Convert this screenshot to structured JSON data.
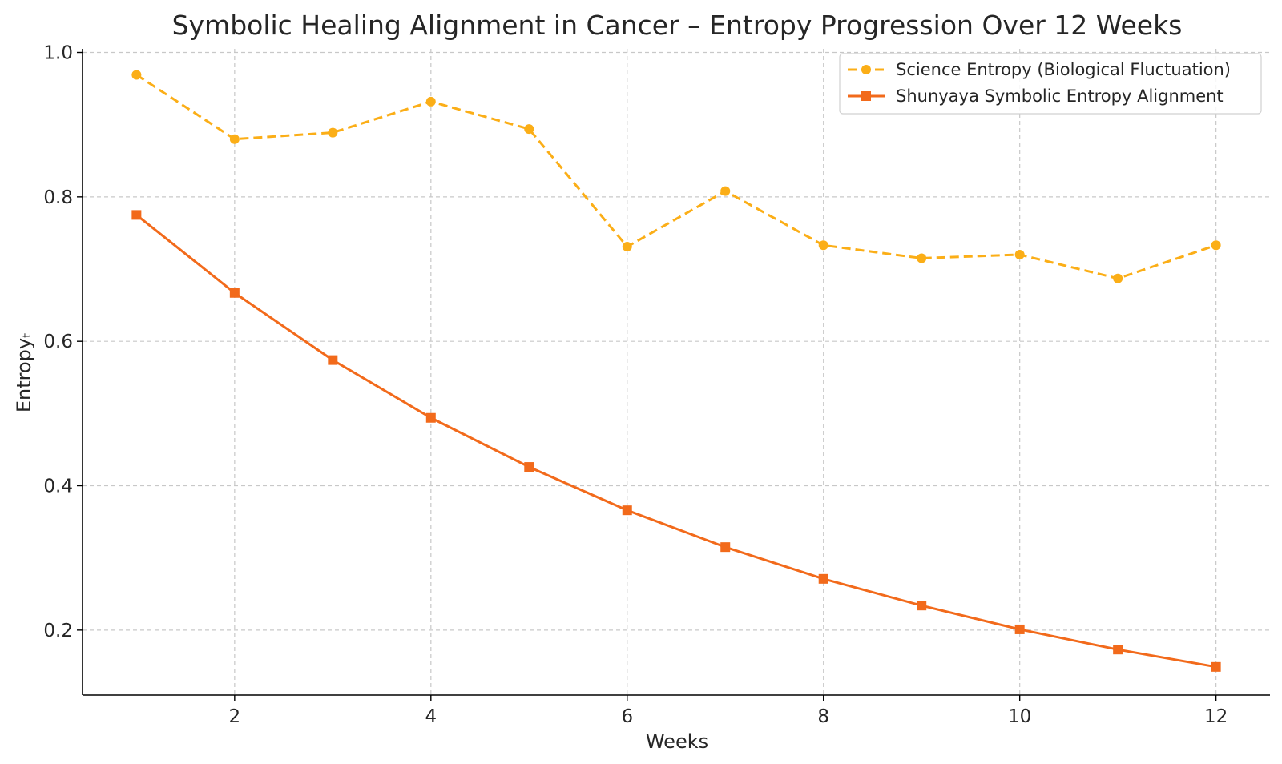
{
  "chart_data": {
    "type": "line",
    "title": "Symbolic Healing Alignment in Cancer – Entropy Progression Over 12 Weeks",
    "xlabel": "Weeks",
    "ylabel": "Entropyₜ",
    "x": [
      1,
      2,
      3,
      4,
      5,
      6,
      7,
      8,
      9,
      10,
      11,
      12
    ],
    "xlim": [
      0.45,
      12.55
    ],
    "ylim": [
      0.11,
      1.005
    ],
    "xticks": [
      2,
      4,
      6,
      8,
      10,
      12
    ],
    "yticks": [
      0.2,
      0.4,
      0.6,
      0.8,
      1.0
    ],
    "xtick_labels": [
      "2",
      "4",
      "6",
      "8",
      "10",
      "12"
    ],
    "ytick_labels": [
      "0.2",
      "0.4",
      "0.6",
      "0.8",
      "1.0"
    ],
    "grid": true,
    "legend_position": "top-right",
    "series": [
      {
        "name": "Science Entropy (Biological Fluctuation)",
        "color": "#FBAE17",
        "line_style": "dashed",
        "marker": "circle",
        "values": [
          0.969,
          0.88,
          0.889,
          0.932,
          0.894,
          0.731,
          0.808,
          0.733,
          0.715,
          0.72,
          0.687,
          0.733
        ]
      },
      {
        "name": "Shunyaya Symbolic Entropy Alignment",
        "color": "#F26A1B",
        "line_style": "solid",
        "marker": "square",
        "values": [
          0.775,
          0.667,
          0.574,
          0.494,
          0.426,
          0.366,
          0.315,
          0.271,
          0.234,
          0.201,
          0.173,
          0.149
        ]
      }
    ]
  }
}
